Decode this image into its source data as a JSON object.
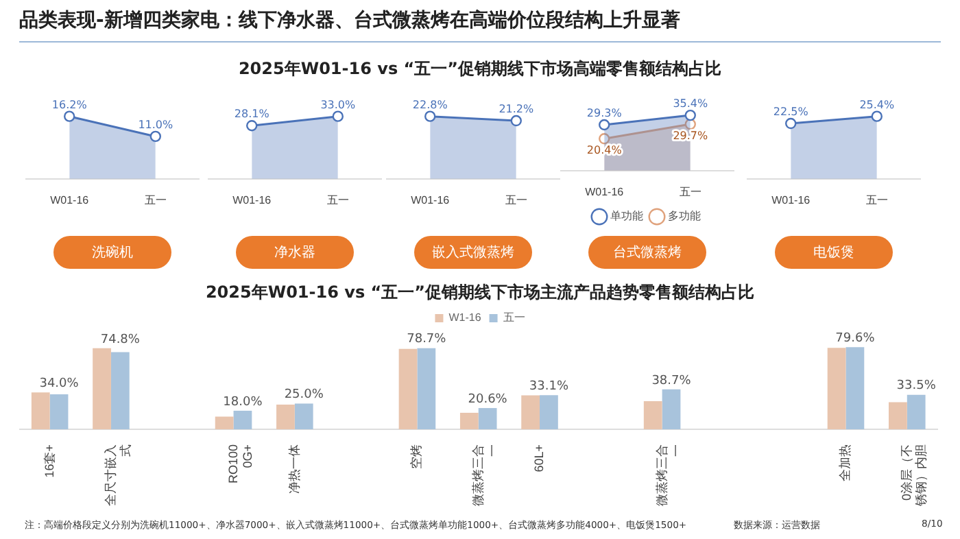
{
  "chart_data": [
    {
      "type": "area",
      "title": "品类表现-新增四类家电：线下净水器、台式微蒸烤在高端价位段结构上升显著",
      "xlabel": "洗碗机",
      "categories": [
        "W01-16",
        "五一"
      ],
      "marker": "circle",
      "legend": false,
      "series": [
        {
          "color": "#4a72b8",
          "values": [
            16.2,
            11.0
          ],
          "value_labels": [
            "16.2%",
            "11.0%"
          ]
        }
      ]
    },
    {
      "type": "area",
      "xlabel": "净水器",
      "categories": [
        "W01-16",
        "五一"
      ],
      "marker": "circle",
      "legend": false,
      "series": [
        {
          "color": "#4a72b8",
          "values": [
            28.1,
            33.0
          ],
          "value_labels": [
            "28.1%",
            "33.0%"
          ]
        }
      ]
    },
    {
      "type": "area",
      "title": "2025年W01-16 vs “五一”促销期线下市场高端零售额结构占比",
      "xlabel": "嵌入式微蒸烤",
      "categories": [
        "W01-16",
        "五一"
      ],
      "marker": "circle",
      "legend": false,
      "series": [
        {
          "color": "#4a72b8",
          "values": [
            22.8,
            21.2
          ],
          "value_labels": [
            "22.8%",
            "21.2%"
          ]
        }
      ]
    },
    {
      "type": "area",
      "xlabel": "台式微蒸烤",
      "categories": [
        "W01-16",
        "五一"
      ],
      "marker": "circle",
      "legend": "bottom",
      "series": [
        {
          "name": "单功能",
          "color": "#4a72b8",
          "values": [
            29.3,
            35.4
          ],
          "value_labels": [
            "29.3%",
            "35.4%"
          ]
        },
        {
          "name": "多功能",
          "color": "#e0a27c",
          "values": [
            20.4,
            29.7
          ],
          "value_labels": [
            "20.4%",
            "29.7%"
          ]
        }
      ]
    },
    {
      "type": "area",
      "xlabel": "电饭煲",
      "categories": [
        "W01-16",
        "五一"
      ],
      "marker": "circle",
      "legend": false,
      "series": [
        {
          "color": "#4a72b8",
          "values": [
            22.5,
            25.4
          ],
          "value_labels": [
            "22.5%",
            "25.4%"
          ]
        }
      ]
    },
    {
      "type": "bar",
      "title": "2025年W01-16 vs “五一”促销期线下市场主流产品趋势零售额结构占比",
      "legend": "top",
      "categories": [
        "16套+",
        "全尺寸嵌入式",
        null,
        "RO1000G+",
        "净热一体",
        null,
        "空烤",
        "微蒸烤三合一",
        "60L+",
        null,
        "微蒸烤三合一",
        null,
        null,
        "全加热",
        "0涂层（不锈钢）内胆"
      ],
      "series": [
        {
          "name": "W1-16",
          "color": "#e8c4ad",
          "values": [
            35.8,
            78.6,
            null,
            12.3,
            24.0,
            null,
            78.0,
            16.0,
            33.0,
            null,
            27.2,
            null,
            null,
            79.0,
            26.3
          ]
        },
        {
          "name": "五一",
          "color": "#a8c3dc",
          "values": [
            34.0,
            74.8,
            null,
            18.0,
            25.0,
            null,
            78.7,
            20.6,
            33.1,
            null,
            38.7,
            null,
            null,
            79.6,
            33.5
          ],
          "value_labels": [
            "34.0%",
            "74.8%",
            null,
            "18.0%",
            "25.0%",
            null,
            "78.7%",
            "20.6%",
            "33.1%",
            null,
            "38.7%",
            null,
            null,
            "79.6%",
            "33.5%"
          ]
        }
      ],
      "annotations": [
        "注：高端价格段定义分别为洗碗机11000+、净水器7000+、嵌入式微蒸烤11000+、台式微蒸烤单功能1000+、台式微蒸烤多功能4000+、电饭煲1500+",
        "数据来源：运营数据",
        "8/10"
      ]
    }
  ]
}
